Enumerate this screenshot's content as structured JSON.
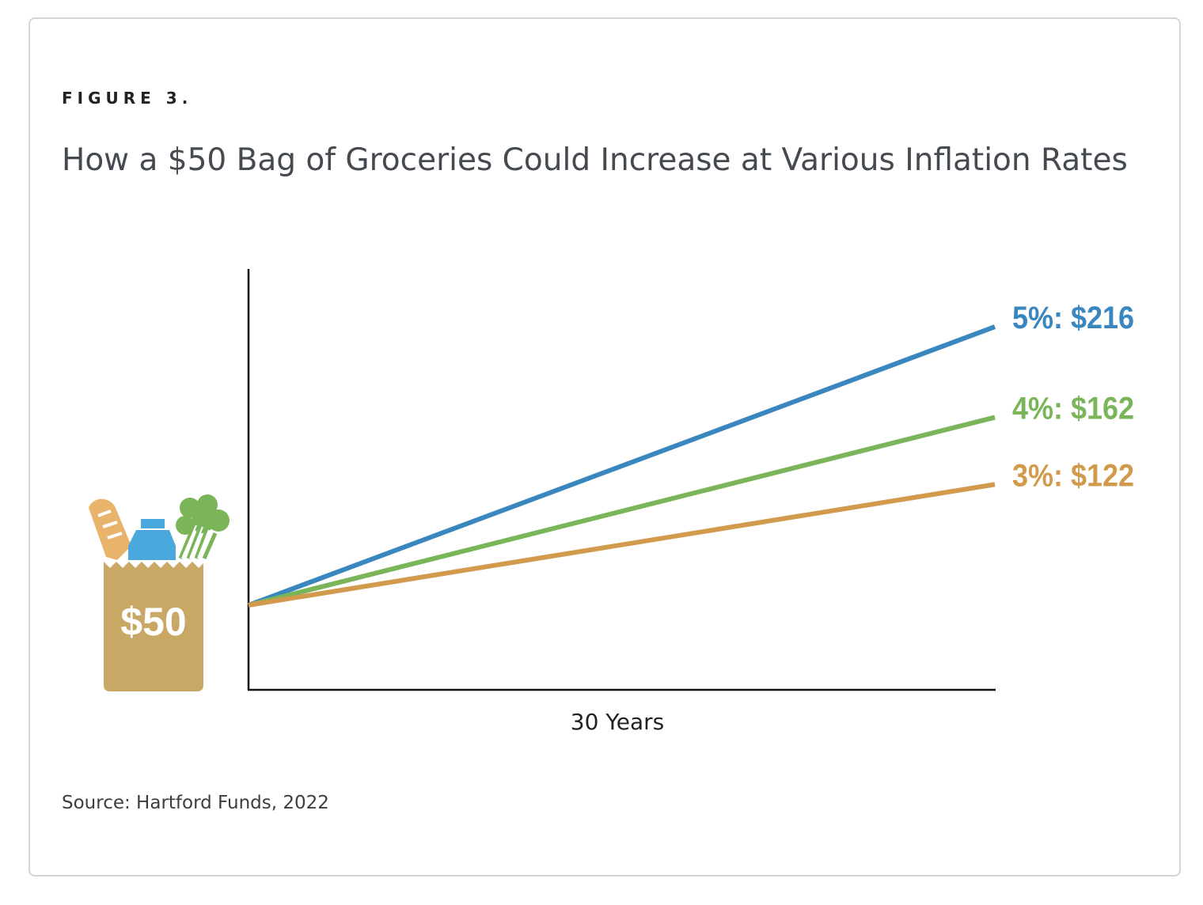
{
  "figure_label": "FIGURE 3.",
  "title": "How a $50 Bag of Groceries Could Increase at Various Inflation Rates",
  "source": "Source: Hartford Funds, 2022",
  "bag_label": "$50",
  "chart_data": {
    "type": "line",
    "xlabel": "30 Years",
    "ylabel": "",
    "x": [
      0,
      30
    ],
    "xlim": [
      0,
      30
    ],
    "ylim": [
      0,
      260
    ],
    "grid": false,
    "legend": "none",
    "start_value": 50,
    "series": [
      {
        "name": "5%",
        "label": "5%: $216",
        "values": [
          50,
          216
        ],
        "color": "#3a87bf"
      },
      {
        "name": "4%",
        "label": "4%: $162",
        "values": [
          50,
          162
        ],
        "color": "#7ab55a"
      },
      {
        "name": "3%",
        "label": "3%: $122",
        "values": [
          50,
          122
        ],
        "color": "#d29a4c"
      }
    ]
  },
  "colors": {
    "bag": "#c9a866",
    "bread": "#e8b36a",
    "milk": "#4ba8dd",
    "greens": "#7ab55a",
    "axis": "#111111"
  },
  "icons": [
    "grocery-bag-icon",
    "bread-icon",
    "milk-carton-icon",
    "lettuce-icon"
  ]
}
